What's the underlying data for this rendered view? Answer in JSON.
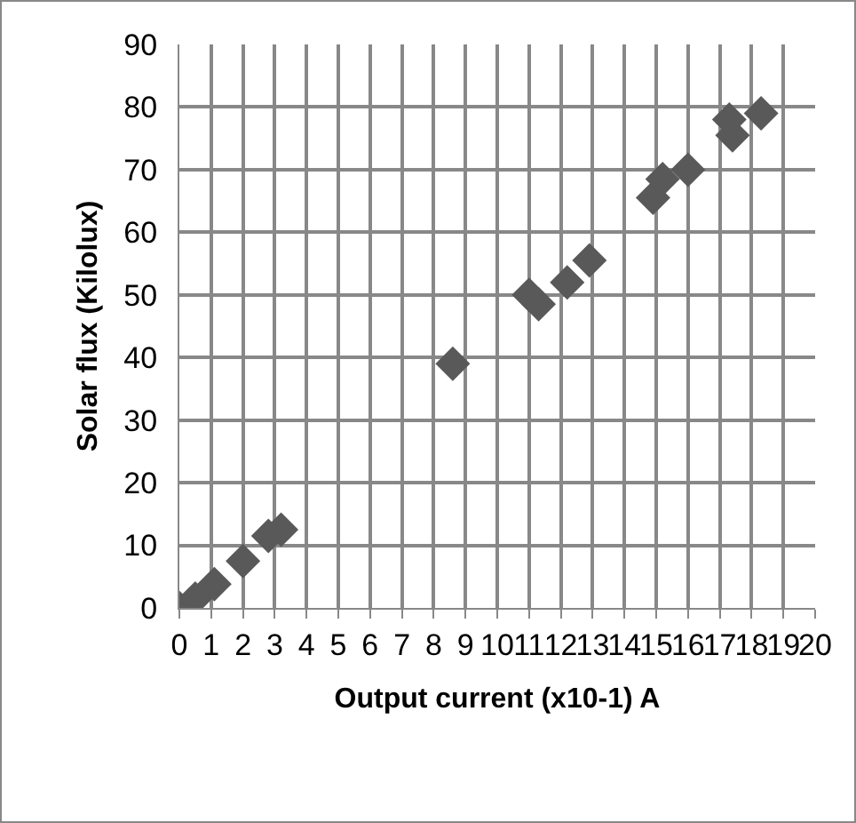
{
  "chart_data": {
    "type": "scatter",
    "xlabel": "Output current (x10-1) A",
    "ylabel": "Solar flux (Kilolux)",
    "x": [
      0,
      0.5,
      1.1,
      2,
      2.8,
      3.2,
      8.6,
      11,
      11.3,
      12.2,
      12.9,
      14.9,
      15.2,
      16,
      17.3,
      17.4,
      18.3
    ],
    "series": [
      {
        "color": "#595959",
        "values": [
          0,
          1.5,
          3.8,
          7.5,
          11.5,
          12.5,
          39,
          50,
          48.5,
          52,
          55.5,
          65.5,
          68.5,
          70,
          78,
          75.5,
          79
        ]
      }
    ],
    "xlim": [
      0,
      20
    ],
    "xticks": [
      0,
      1,
      2,
      3,
      4,
      5,
      6,
      7,
      8,
      9,
      10,
      11,
      12,
      13,
      14,
      15,
      16,
      17,
      18,
      19,
      20
    ],
    "ylim": [
      0,
      90
    ],
    "yticks": [
      0,
      10,
      20,
      30,
      40,
      50,
      60,
      70,
      80,
      90
    ],
    "grid": true,
    "marker": "diamond"
  }
}
